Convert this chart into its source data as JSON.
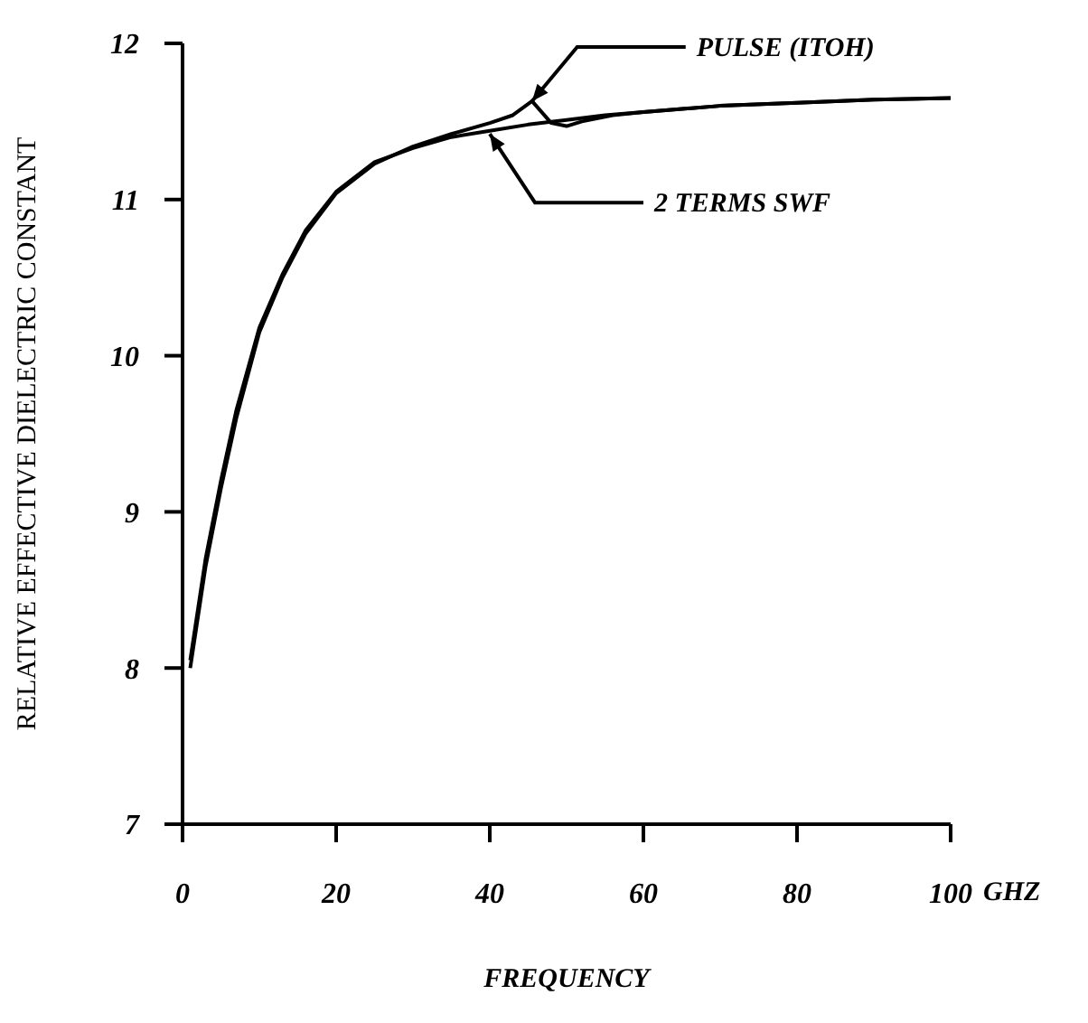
{
  "chart_data": {
    "type": "line",
    "xlabel": "FREQUENCY",
    "ylabel": "RELATIVE EFFECTIVE DIELECTRIC CONSTANT",
    "xlim": [
      0,
      100
    ],
    "xticks": [
      0,
      20,
      40,
      60,
      80,
      100
    ],
    "ylim": [
      7,
      12
    ],
    "yticks": [
      7,
      8,
      9,
      10,
      11,
      12
    ],
    "marker": "none",
    "line_style": "solid",
    "series": [
      {
        "color": "#000000",
        "x": [
          1,
          3,
          5,
          7,
          10,
          13,
          16,
          20,
          25,
          30,
          35,
          40,
          43,
          45.5,
          48,
          50,
          52,
          56,
          60,
          70,
          80,
          90,
          100
        ],
        "values": [
          8.0,
          8.65,
          9.15,
          9.6,
          10.15,
          10.5,
          10.78,
          11.04,
          11.23,
          11.34,
          11.42,
          11.49,
          11.54,
          11.63,
          11.49,
          11.47,
          11.5,
          11.54,
          11.56,
          11.6,
          11.62,
          11.64,
          11.65
        ]
      },
      {
        "color": "#000000",
        "x": [
          1,
          3,
          5,
          7,
          10,
          13,
          16,
          20,
          25,
          30,
          35,
          40,
          45,
          50,
          55,
          60,
          70,
          80,
          90,
          100
        ],
        "values": [
          8.05,
          8.7,
          9.2,
          9.65,
          10.18,
          10.52,
          10.8,
          11.05,
          11.24,
          11.33,
          11.4,
          11.44,
          11.48,
          11.51,
          11.54,
          11.56,
          11.6,
          11.62,
          11.64,
          11.65
        ]
      }
    ],
    "annotations": [
      {
        "text": "PULSE (ITOH)",
        "x": 45.5,
        "y": 11.63
      },
      {
        "text": "2 TERMS SWF",
        "x": 40,
        "y": 11.42
      },
      "GHZ"
    ]
  }
}
